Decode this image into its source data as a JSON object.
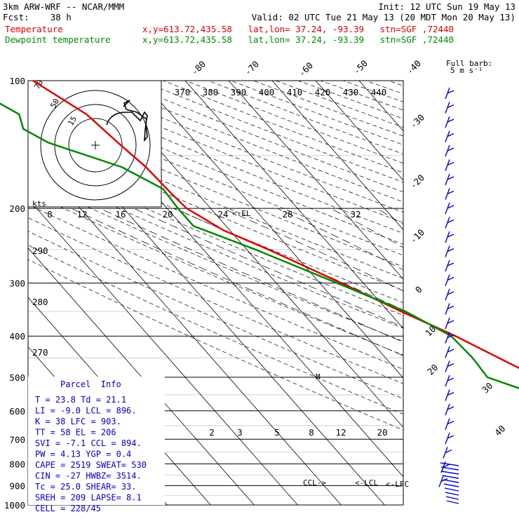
{
  "header": {
    "line1_left": "3km ARW-WRF -- NCAR/MMM",
    "line1_right": "Init: 12 UTC Sun 19 May 13",
    "line2_left": "Fcst:    38 h",
    "line2_right": "Valid: 02 UTC Tue 21 May 13 (20 MDT Mon 20 May 13)",
    "temp_label": "Temperature",
    "temp_info": "x,y=613.72,435.58   lat,lon= 37.24, -93.39   stn=SGF ,72440",
    "dew_label": "Dewpoint temperature",
    "dew_info": "x,y=613.72,435.58   lat,lon= 37.24, -93.39   stn=SGF ,72440",
    "barb_title": "Full barb:",
    "barb_units": "5 m s⁻¹"
  },
  "colors": {
    "temperature": "#e00000",
    "dewpoint": "#008800",
    "parcel": "#0000cc",
    "grid": "#000000"
  },
  "chart_data": {
    "type": "line",
    "y_scale": "log-pressure",
    "ylim": [
      1000,
      100
    ],
    "pressure_labels": [
      "100",
      "200",
      "300",
      "400",
      "500",
      "600",
      "700",
      "800",
      "900",
      "1000"
    ],
    "pressure_levels": [
      100,
      200,
      300,
      400,
      500,
      600,
      700,
      800,
      900,
      1000
    ],
    "isotherm_labels": [
      {
        "text": "-80",
        "t": -80
      },
      {
        "text": "-70",
        "t": -70
      },
      {
        "text": "-60",
        "t": -60
      },
      {
        "text": "-50",
        "t": -50
      },
      {
        "text": "-40",
        "t": -40
      },
      {
        "text": "-30",
        "t": -30
      },
      {
        "text": "-20",
        "t": -20
      },
      {
        "text": "-10",
        "t": -10
      },
      {
        "text": "0",
        "t": 0
      },
      {
        "text": "10",
        "t": 10
      },
      {
        "text": "20",
        "t": 20
      },
      {
        "text": "30",
        "t": 30
      },
      {
        "text": "40",
        "t": 40
      }
    ],
    "theta_labels": [
      "370",
      "380",
      "390",
      "400",
      "410",
      "420",
      "430",
      "440"
    ],
    "theta_left_labels": [
      "290",
      "280",
      "270"
    ],
    "mixing_ratio_labels": [
      "2",
      "3",
      "5",
      "8",
      "12",
      "20"
    ],
    "hodograph": {
      "units": "kts",
      "ring_labels": [
        "15",
        "50",
        "70"
      ],
      "speed_scale": [
        "8",
        "12",
        "16",
        "20",
        "24",
        "28",
        "32"
      ]
    },
    "el_marker": "<-EL",
    "ccl_marker": "CCL->",
    "lcl_marker": "<-LCL",
    "lfc_marker": "<-LFC",
    "series": [
      {
        "name": "Temperature",
        "points": [
          [
            1000,
            25.0
          ],
          [
            965,
            27.5
          ],
          [
            950,
            24.0
          ],
          [
            900,
            21.5
          ],
          [
            850,
            19.0
          ],
          [
            800,
            16.0
          ],
          [
            750,
            12.5
          ],
          [
            700,
            8.0
          ],
          [
            650,
            4.0
          ],
          [
            600,
            -0.5
          ],
          [
            550,
            -4.0
          ],
          [
            500,
            -9.0
          ],
          [
            450,
            -14.0
          ],
          [
            400,
            -19.5
          ],
          [
            350,
            -27.0
          ],
          [
            300,
            -35.0
          ],
          [
            250,
            -45.0
          ],
          [
            225,
            -51.5
          ],
          [
            200,
            -55.5
          ],
          [
            185,
            -56.0
          ],
          [
            160,
            -56.5
          ],
          [
            140,
            -58.0
          ],
          [
            120,
            -59.5
          ],
          [
            100,
            -65.0
          ]
        ]
      },
      {
        "name": "Dewpoint temperature",
        "points": [
          [
            1000,
            21.0
          ],
          [
            965,
            21.1
          ],
          [
            900,
            19.0
          ],
          [
            850,
            16.0
          ],
          [
            800,
            14.0
          ],
          [
            750,
            8.0
          ],
          [
            700,
            2.0
          ],
          [
            650,
            -4.0
          ],
          [
            600,
            -8.0
          ],
          [
            550,
            -12.5
          ],
          [
            500,
            -20.5
          ],
          [
            450,
            -20.0
          ],
          [
            400,
            -20.5
          ],
          [
            350,
            -26.0
          ],
          [
            300,
            -36.0
          ],
          [
            250,
            -48.0
          ],
          [
            220,
            -57.5
          ],
          [
            200,
            -57.5
          ],
          [
            180,
            -57.0
          ],
          [
            160,
            -62.0
          ],
          [
            140,
            -74.0
          ],
          [
            130,
            -77.0
          ],
          [
            120,
            -75.0
          ],
          [
            100,
            -82.0
          ]
        ]
      }
    ]
  },
  "parcel_info": {
    "title": "Parcel  Info",
    "rows": [
      "T  =    23.8  Td =  21.1",
      "LI =   -9.0  LCL =  896.",
      "K  =     38  LFC =  903.",
      "TT =     58  EL  =   206",
      "SVI =  -7.1  CCL =  894.",
      "PW =   4.13  YGP =   0.4",
      "CAPE =  2519  SWEAT=  530",
      "CIN =   -27  HWBZ= 3514.",
      "Tc =   25.0  SHEAR=  33.",
      "SREH =  209  LAPSE=  8.1",
      "CELL = 228/45"
    ]
  }
}
